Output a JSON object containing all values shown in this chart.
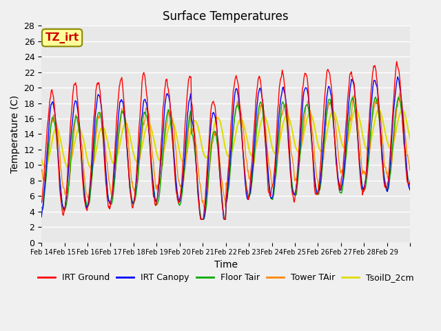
{
  "title": "Surface Temperatures",
  "xlabel": "Time",
  "ylabel": "Temperature (C)",
  "ylim": [
    0,
    28
  ],
  "yticks": [
    0,
    2,
    4,
    6,
    8,
    10,
    12,
    14,
    16,
    18,
    20,
    22,
    24,
    26,
    28
  ],
  "x_labels": [
    "Feb 14",
    "Feb 15",
    "Feb 16",
    "Feb 17",
    "Feb 18",
    "Feb 19",
    "Feb 20",
    "Feb 21",
    "Feb 22",
    "Feb 23",
    "Feb 24",
    "Feb 25",
    "Feb 26",
    "Feb 27",
    "Feb 28",
    "Feb 29"
  ],
  "series_colors": {
    "IRT Ground": "#ff0000",
    "IRT Canopy": "#0000ff",
    "Floor Tair": "#00aa00",
    "Tower TAir": "#ff8800",
    "TsoilD_2cm": "#dddd00"
  },
  "annotation_text": "TZ_irt",
  "annotation_bg": "#ffff99",
  "annotation_border": "#888800",
  "annotation_text_color": "#cc0000",
  "background_color": "#e8e8e8",
  "grid_color": "#ffffff",
  "n_days": 16,
  "pts_per_day": 48,
  "seed": 42
}
